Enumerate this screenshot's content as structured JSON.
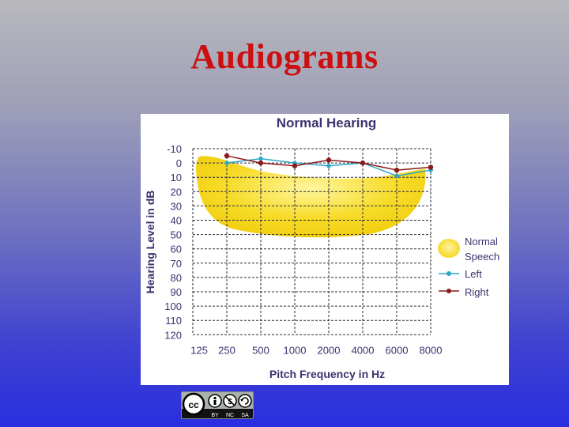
{
  "slide": {
    "title": "Audiograms"
  },
  "chart_data": {
    "type": "line",
    "title": "Normal Hearing",
    "xlabel": "Pitch Frequency in Hz",
    "ylabel": "Hearing Level in dB",
    "categories": [
      "125",
      "250",
      "500",
      "1000",
      "2000",
      "4000",
      "6000",
      "8000"
    ],
    "y_ticks": [
      "-10",
      "0",
      "10",
      "20",
      "30",
      "40",
      "50",
      "60",
      "70",
      "80",
      "90",
      "100",
      "110",
      "120"
    ],
    "ylim": [
      -10,
      120
    ],
    "y_inverted": true,
    "grid": true,
    "speech_band_label": "Normal Speech",
    "series": [
      {
        "name": "Left",
        "color": "#2aa7c9",
        "values": [
          null,
          0,
          -3,
          0,
          2,
          0,
          9,
          5
        ]
      },
      {
        "name": "Right",
        "color": "#8b1a1a",
        "values": [
          null,
          -5,
          0,
          2,
          -2,
          0,
          5,
          3
        ]
      }
    ],
    "legend": {
      "position": "right",
      "items": [
        {
          "label_line1": "Normal",
          "label_line2": "Speech"
        },
        {
          "label": "Left"
        },
        {
          "label": "Right"
        }
      ]
    },
    "colors": {
      "title": "#3a3470",
      "axis_text": "#3a3470",
      "speech": "#f7dc2a"
    }
  },
  "license_badge": {
    "by": "BY",
    "nc": "NC",
    "sa": "SA"
  }
}
